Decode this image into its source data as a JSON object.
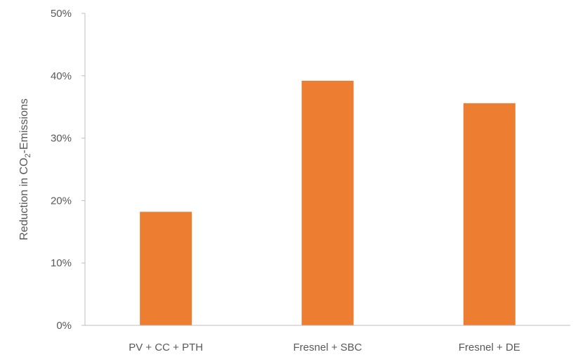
{
  "chart_data": {
    "type": "bar",
    "categories": [
      "PV + CC + PTH",
      "Fresnel + SBC",
      "Fresnel + DE"
    ],
    "values": [
      18.2,
      39.2,
      35.6
    ],
    "ylabel": "Reduction in CO2-Emissions",
    "ylabel_parts": {
      "before": "Reduction in CO",
      "sub": "2",
      "after": "-Emissions"
    },
    "ylim": [
      0,
      50
    ],
    "yticks": [
      0,
      10,
      20,
      30,
      40,
      50
    ],
    "ytick_labels": [
      "0%",
      "10%",
      "20%",
      "30%",
      "40%",
      "50%"
    ],
    "grid": false,
    "legend": "none",
    "bar_color": "#ED7D31"
  }
}
